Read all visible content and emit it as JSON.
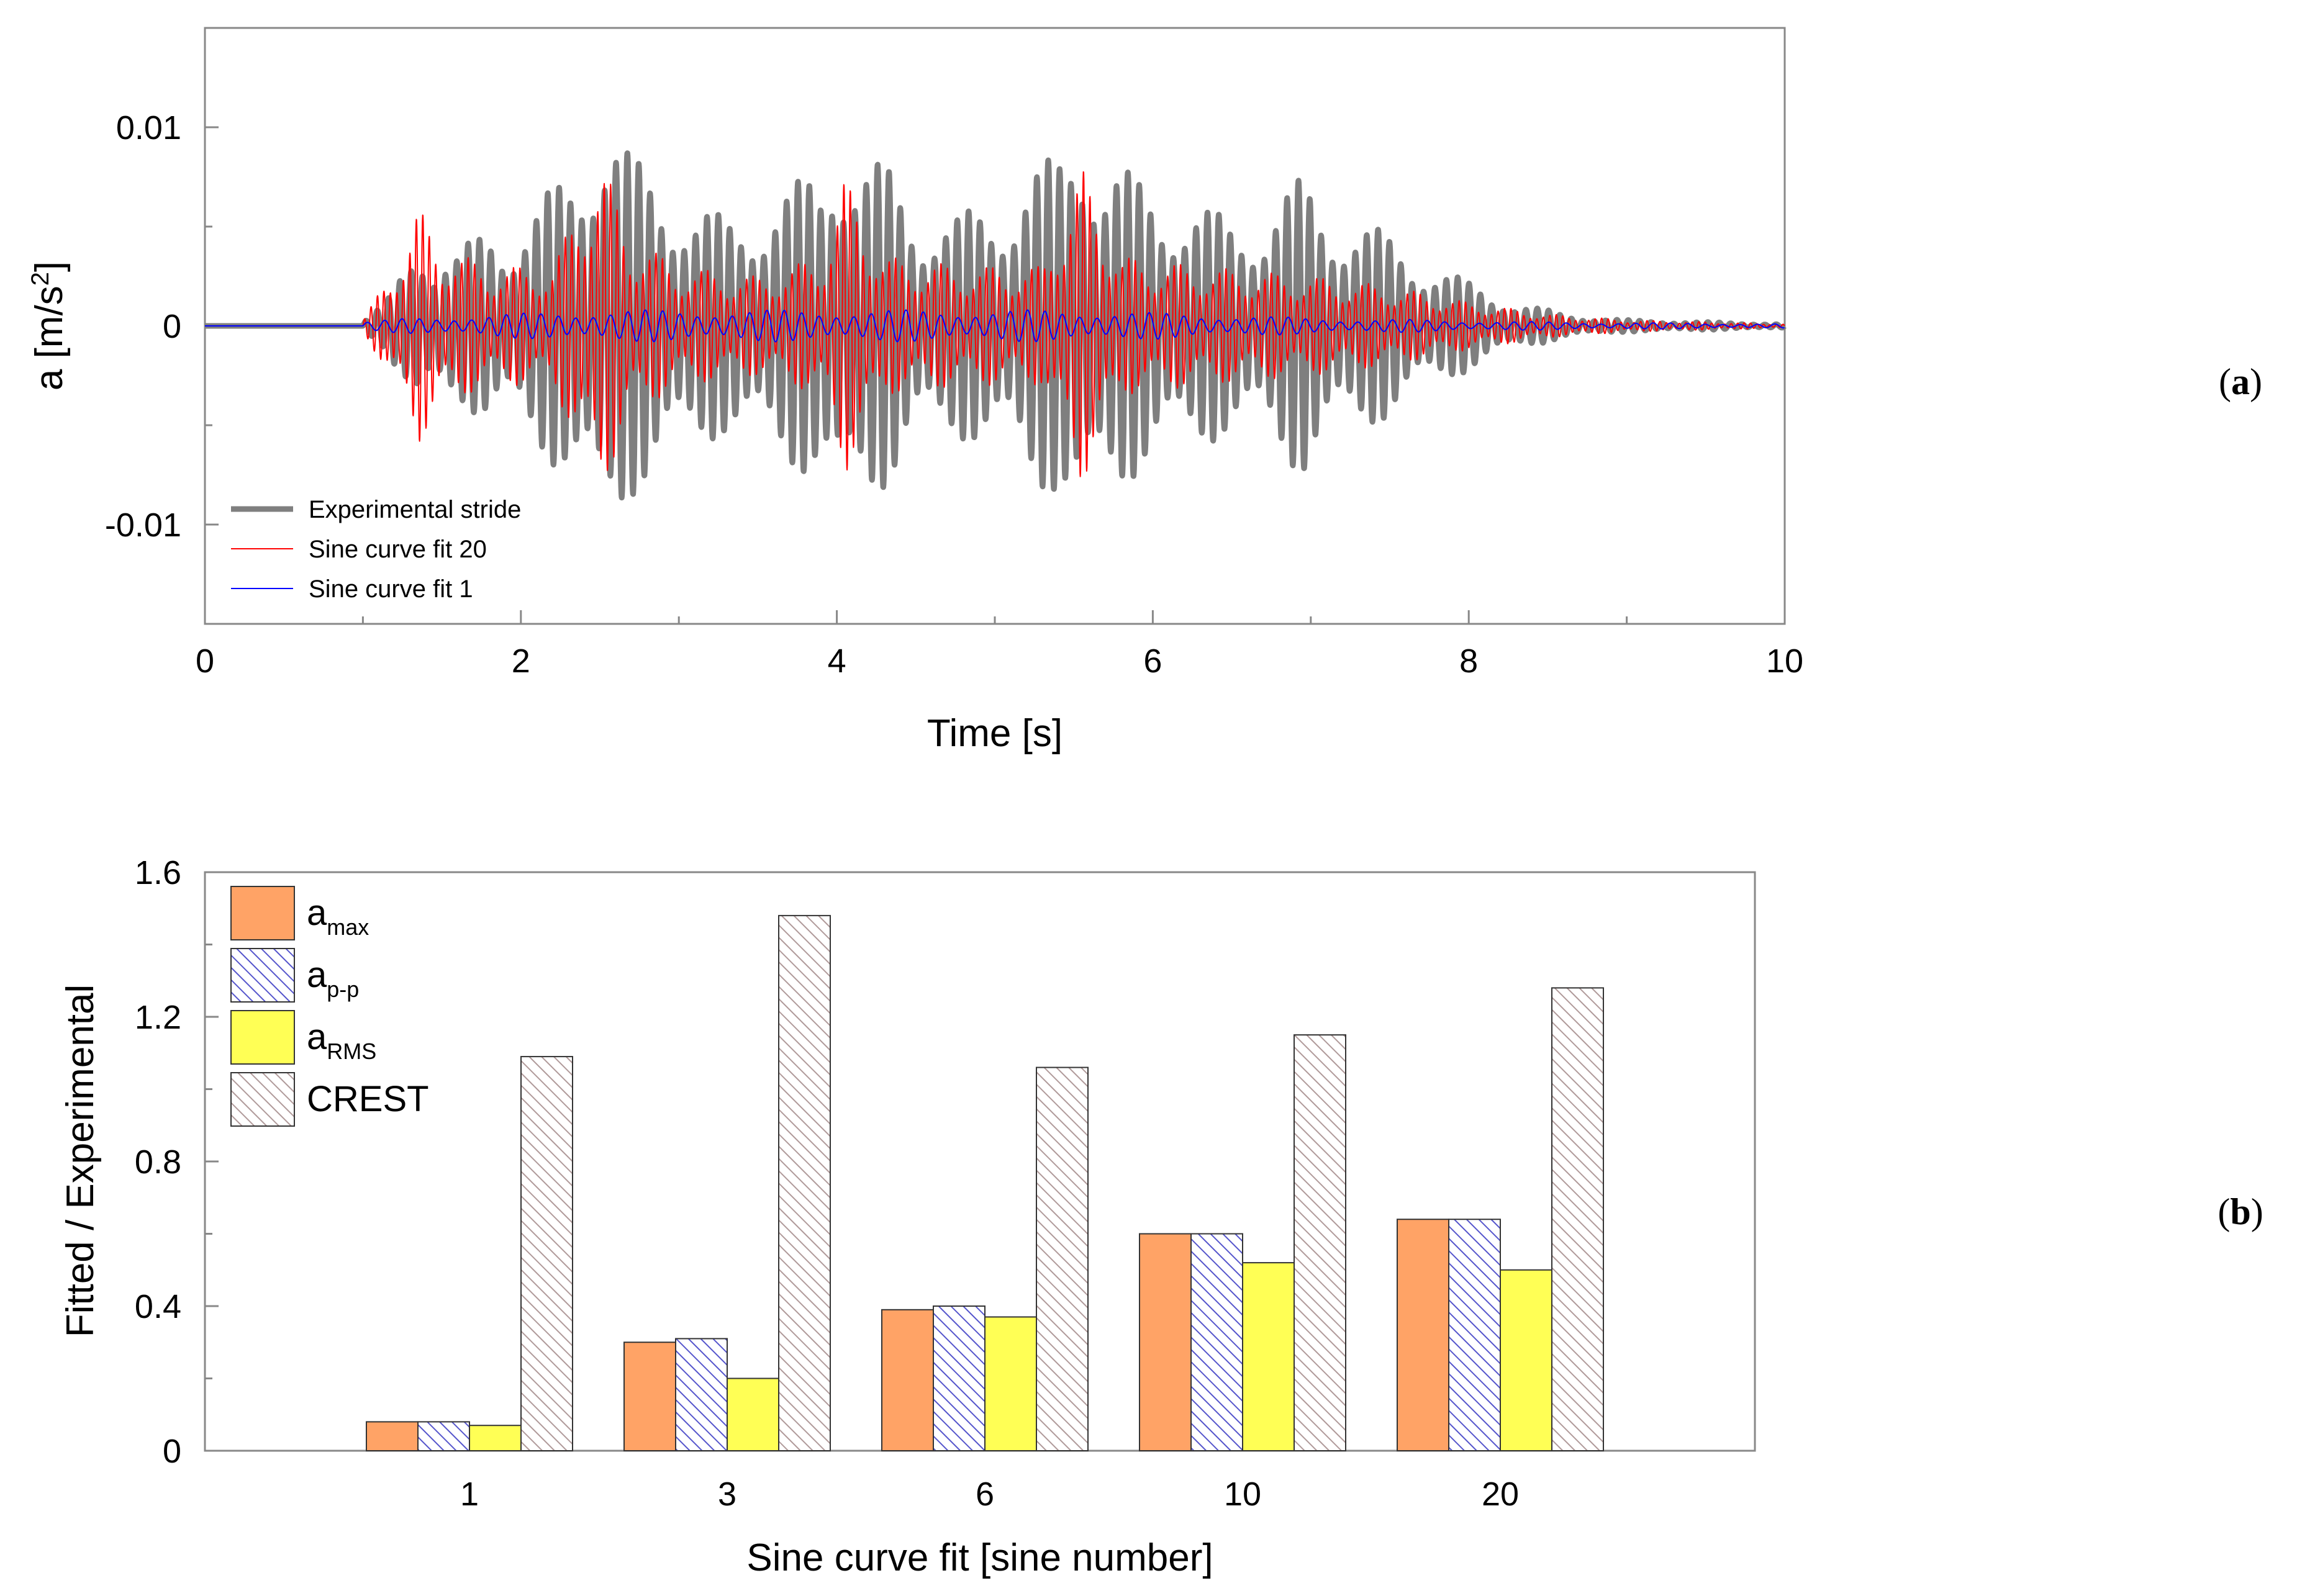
{
  "chart_data": [
    {
      "type": "line",
      "panel_label": "a",
      "xlabel": "Time  [s]",
      "ylabel_base": "a [m/s",
      "ylabel_sup": "2",
      "ylabel_end": "]",
      "xlim": [
        0,
        10
      ],
      "ylim": [
        -0.015,
        0.015
      ],
      "xticks": [
        0,
        2,
        4,
        6,
        8,
        10
      ],
      "xtick_labels": [
        "0",
        "2",
        "4",
        "6",
        "8",
        "10"
      ],
      "yticks": [
        -0.01,
        0,
        0.01
      ],
      "ytick_labels": [
        "-0.01",
        "0",
        "0.01"
      ],
      "legend_position": "bottom-left",
      "series": [
        {
          "name": "Experimental stride",
          "color": "#7f7f7f",
          "signal": "oscillation",
          "base_level": 0,
          "onset": 1.0,
          "period": 0.072,
          "envelope": [
            [
              1.0,
              0.0002
            ],
            [
              1.15,
              0.0012
            ],
            [
              1.25,
              0.003
            ],
            [
              1.35,
              0.0055
            ],
            [
              1.45,
              0.0035
            ],
            [
              1.6,
              0.0035
            ],
            [
              1.8,
              0.0055
            ],
            [
              1.95,
              0.005
            ],
            [
              2.1,
              0.006
            ],
            [
              2.3,
              0.008
            ],
            [
              2.5,
              0.0115
            ],
            [
              2.7,
              0.0085
            ],
            [
              2.9,
              0.008
            ],
            [
              3.1,
              0.006
            ],
            [
              3.3,
              0.0055
            ],
            [
              3.5,
              0.0065
            ],
            [
              3.7,
              0.007
            ],
            [
              3.9,
              0.008
            ],
            [
              4.0,
              0.011
            ],
            [
              4.15,
              0.0085
            ],
            [
              4.35,
              0.008
            ],
            [
              4.55,
              0.006
            ],
            [
              4.75,
              0.0055
            ],
            [
              5.0,
              0.0065
            ],
            [
              5.2,
              0.008
            ],
            [
              5.4,
              0.0085
            ],
            [
              5.55,
              0.0115
            ],
            [
              5.7,
              0.0085
            ],
            [
              5.9,
              0.0075
            ],
            [
              6.1,
              0.007
            ],
            [
              6.3,
              0.006
            ],
            [
              6.5,
              0.0055
            ],
            [
              6.7,
              0.006
            ],
            [
              6.95,
              0.0075
            ],
            [
              7.15,
              0.006
            ],
            [
              7.4,
              0.005
            ],
            [
              7.7,
              0.0035
            ],
            [
              8.0,
              0.0022
            ],
            [
              8.3,
              0.0012
            ],
            [
              8.6,
              0.0006
            ],
            [
              9.0,
              0.0003
            ],
            [
              9.5,
              0.0002
            ],
            [
              10.0,
              0.0001
            ]
          ]
        },
        {
          "name": "Sine curve fit 20",
          "color": "#ff0000",
          "signal": "oscillation",
          "base_level": 0,
          "onset": 1.0,
          "period": 0.041,
          "envelope": [
            [
              1.0,
              0.0003
            ],
            [
              1.2,
              0.003
            ],
            [
              1.35,
              0.006
            ],
            [
              1.5,
              0.004
            ],
            [
              1.8,
              0.003
            ],
            [
              2.2,
              0.003
            ],
            [
              2.5,
              0.0085
            ],
            [
              2.7,
              0.0045
            ],
            [
              3.0,
              0.003
            ],
            [
              3.5,
              0.0025
            ],
            [
              3.9,
              0.0035
            ],
            [
              4.05,
              0.0075
            ],
            [
              4.3,
              0.0035
            ],
            [
              4.8,
              0.003
            ],
            [
              5.3,
              0.003
            ],
            [
              5.55,
              0.008
            ],
            [
              5.8,
              0.0035
            ],
            [
              6.3,
              0.003
            ],
            [
              7.0,
              0.0025
            ],
            [
              7.5,
              0.002
            ],
            [
              8.0,
              0.0012
            ],
            [
              8.5,
              0.0006
            ],
            [
              9.0,
              0.0003
            ],
            [
              10.0,
              0.0001
            ]
          ]
        },
        {
          "name": "Sine curve fit 1",
          "color": "#0000ff",
          "signal": "oscillation",
          "base_level": 0,
          "onset": 1.0,
          "period": 0.11,
          "envelope": [
            [
              1.0,
              0.0002
            ],
            [
              1.3,
              0.0004
            ],
            [
              2.5,
              0.0008
            ],
            [
              4.0,
              0.0008
            ],
            [
              5.5,
              0.0008
            ],
            [
              7.0,
              0.0004
            ],
            [
              8.5,
              0.0002
            ],
            [
              10.0,
              0.0001
            ]
          ]
        }
      ]
    },
    {
      "type": "bar",
      "panel_label": "b",
      "xlabel": "Sine curve fit  [sine number]",
      "ylabel": "Fitted / Experimental",
      "ylim": [
        0,
        1.6
      ],
      "yticks": [
        0,
        0.4,
        0.8,
        1.2,
        1.6
      ],
      "ytick_labels": [
        "0",
        "0.4",
        "0.8",
        "1.2",
        "1.6"
      ],
      "categories": [
        "1",
        "3",
        "6",
        "10",
        "20"
      ],
      "legend_position": "top-left",
      "series": [
        {
          "name_main": "a",
          "name_sub": "max",
          "fill": "solid",
          "color": "#ffa366",
          "values": [
            0.08,
            0.3,
            0.39,
            0.6,
            0.64
          ]
        },
        {
          "name_main": "a",
          "name_sub": "p-p",
          "fill": "hatch-blue",
          "color": "#5555cc",
          "values": [
            0.08,
            0.31,
            0.4,
            0.6,
            0.64
          ]
        },
        {
          "name_main": "a",
          "name_sub": "RMS",
          "fill": "solid",
          "color": "#ffff55",
          "values": [
            0.07,
            0.2,
            0.37,
            0.52,
            0.5
          ]
        },
        {
          "name_main": "CREST",
          "name_sub": "",
          "fill": "hatch-grey",
          "color": "#b09a9a",
          "values": [
            1.09,
            1.48,
            1.06,
            1.15,
            1.28
          ]
        }
      ]
    }
  ]
}
